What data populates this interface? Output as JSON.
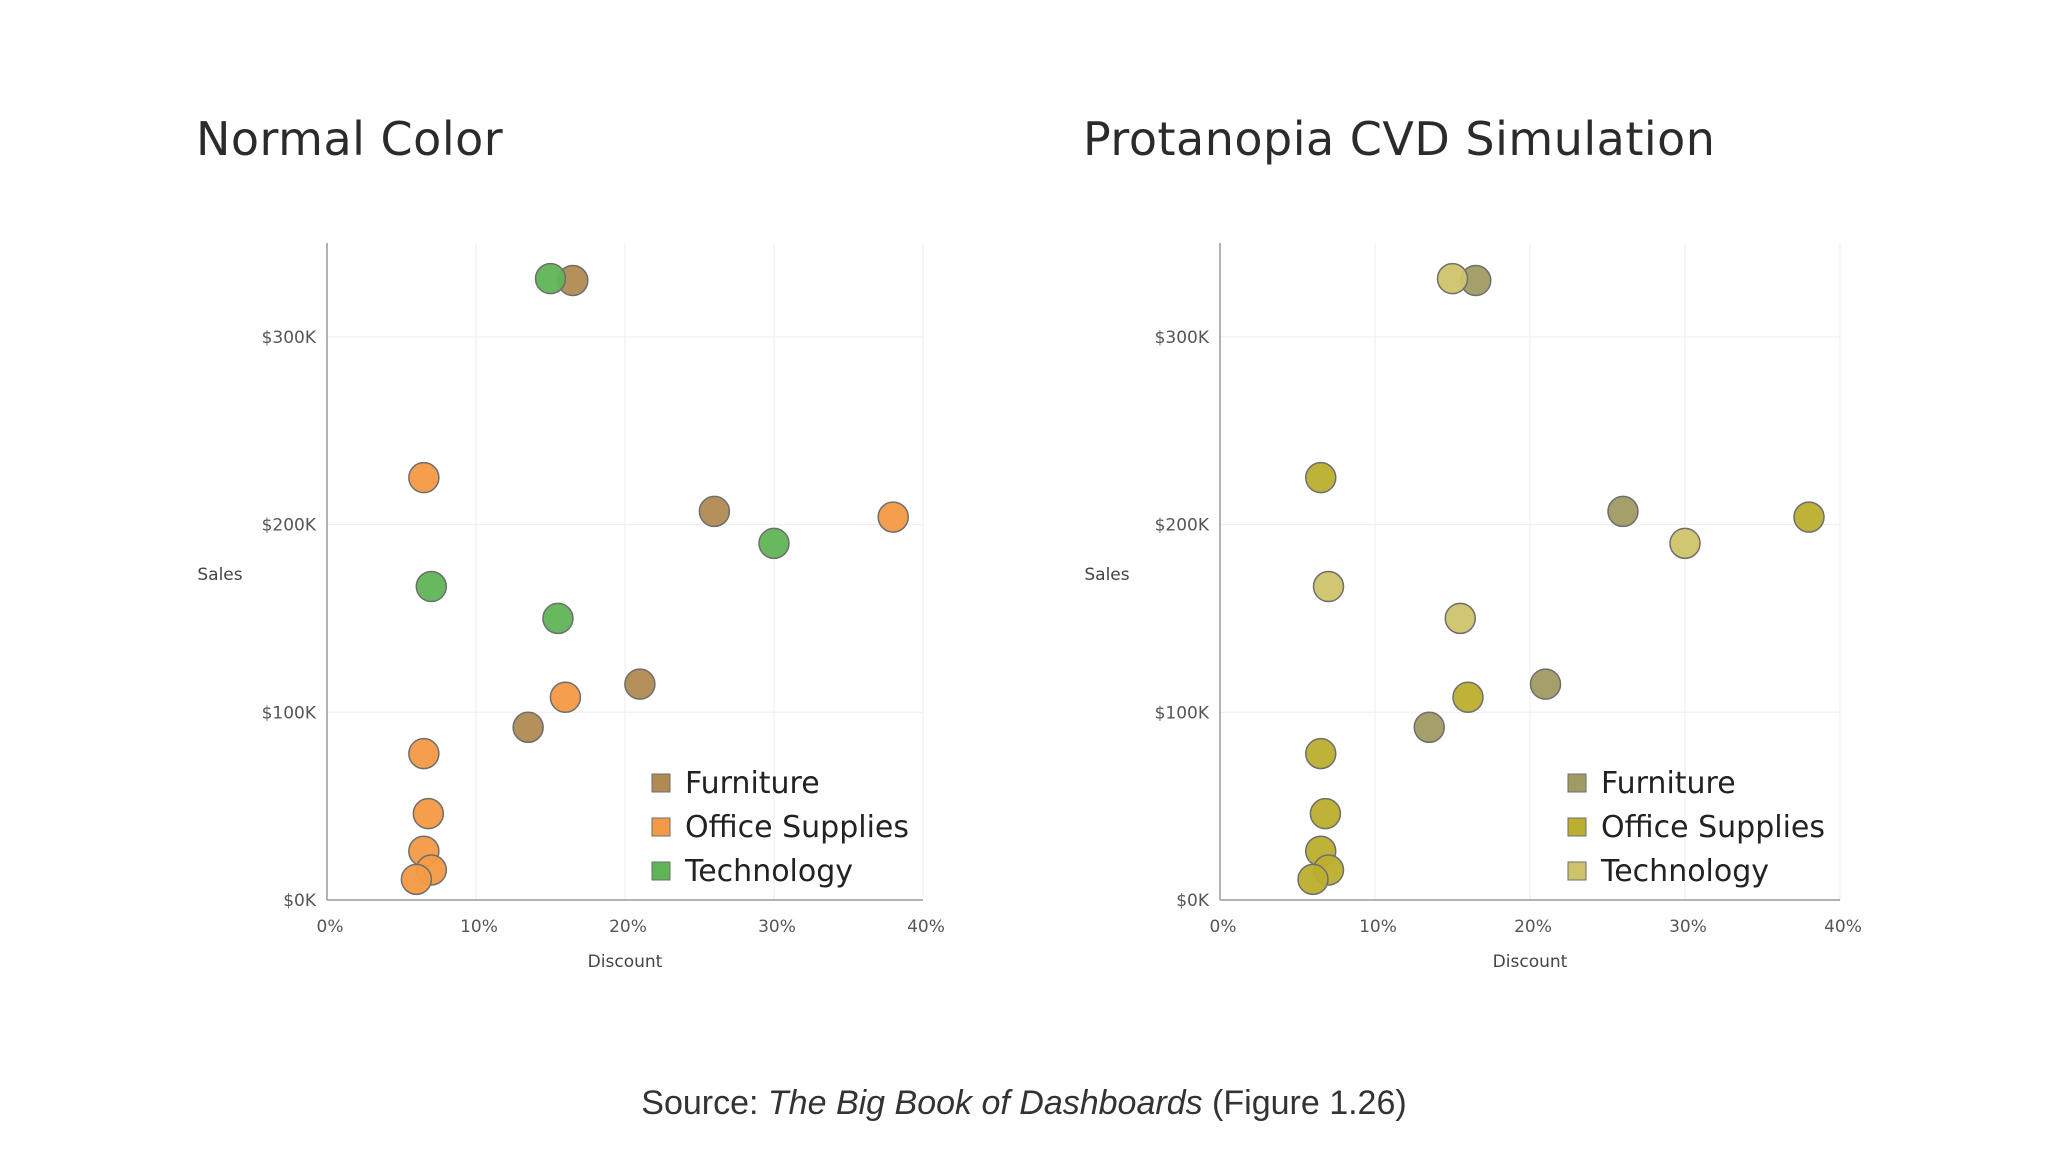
{
  "charts": {
    "normal": {
      "title": "Normal Color"
    },
    "protanopia": {
      "title": "Protanopia CVD Simulation"
    }
  },
  "source": {
    "prefix": "Source: ",
    "book": "The Big Book of Dashboards",
    "suffix": " (Figure 1.26)"
  },
  "chart_data": [
    {
      "type": "scatter",
      "title": "Normal Color",
      "xlabel": "Discount",
      "ylabel": "Sales",
      "xlim": [
        0,
        0.4
      ],
      "ylim": [
        0,
        350000
      ],
      "xticks": [
        0,
        0.1,
        0.2,
        0.3,
        0.4
      ],
      "xtick_labels": [
        "0%",
        "10%",
        "20%",
        "30%",
        "40%"
      ],
      "yticks": [
        0,
        100000,
        200000,
        300000
      ],
      "ytick_labels": [
        "$0K",
        "$100K",
        "$200K",
        "$300K"
      ],
      "grid": true,
      "legend_position": "bottom-right",
      "series": [
        {
          "name": "Furniture",
          "color": "#B08A52",
          "x": [
            0.165,
            0.26,
            0.21,
            0.135
          ],
          "y": [
            330000,
            207000,
            115000,
            92000
          ]
        },
        {
          "name": "Office Supplies",
          "color": "#F49A45",
          "x": [
            0.065,
            0.38,
            0.16,
            0.065,
            0.068,
            0.065,
            0.07,
            0.06
          ],
          "y": [
            225000,
            204000,
            108000,
            78000,
            46000,
            26000,
            16000,
            11000
          ]
        },
        {
          "name": "Technology",
          "color": "#5FB455",
          "x": [
            0.15,
            0.3,
            0.07,
            0.155
          ],
          "y": [
            331000,
            190000,
            167000,
            150000
          ]
        }
      ]
    },
    {
      "type": "scatter",
      "title": "Protanopia CVD Simulation",
      "xlabel": "Discount",
      "ylabel": "Sales",
      "xlim": [
        0,
        0.4
      ],
      "ylim": [
        0,
        350000
      ],
      "xticks": [
        0,
        0.1,
        0.2,
        0.3,
        0.4
      ],
      "xtick_labels": [
        "0%",
        "10%",
        "20%",
        "30%",
        "40%"
      ],
      "yticks": [
        0,
        100000,
        200000,
        300000
      ],
      "ytick_labels": [
        "$0K",
        "$100K",
        "$200K",
        "$300K"
      ],
      "grid": true,
      "legend_position": "bottom-right",
      "series": [
        {
          "name": "Furniture",
          "color": "#A09A63",
          "x": [
            0.165,
            0.26,
            0.21,
            0.135
          ],
          "y": [
            330000,
            207000,
            115000,
            92000
          ]
        },
        {
          "name": "Office Supplies",
          "color": "#BCAE2E",
          "x": [
            0.065,
            0.38,
            0.16,
            0.065,
            0.068,
            0.065,
            0.07,
            0.06
          ],
          "y": [
            225000,
            204000,
            108000,
            78000,
            46000,
            26000,
            16000,
            11000
          ]
        },
        {
          "name": "Technology",
          "color": "#CFC36A",
          "x": [
            0.15,
            0.3,
            0.07,
            0.155
          ],
          "y": [
            331000,
            190000,
            167000,
            150000
          ]
        }
      ]
    }
  ]
}
